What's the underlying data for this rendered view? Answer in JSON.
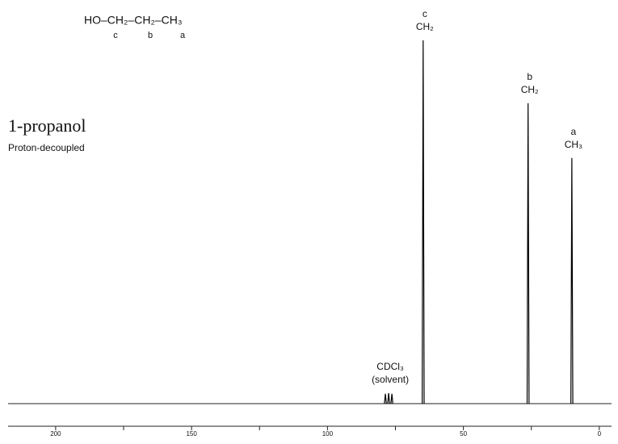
{
  "chart_data": {
    "type": "spectrum",
    "title": "1-propanol",
    "subtitle": "Proton-decoupled",
    "formula": {
      "text": "HO–CH₂–CH₂–CH₃",
      "letters": [
        "c",
        "b",
        "a"
      ]
    },
    "x": [
      78.7,
      77.5,
      76.3,
      64.8,
      26.2,
      10.1
    ],
    "values": [
      2.7,
      2.9,
      2.7,
      100,
      82.7,
      67.6
    ],
    "peak_labels": [
      {
        "lines": [
          "CDCl₃",
          "(solvent)"
        ]
      },
      {
        "lines": [
          "c",
          "CH₂"
        ]
      },
      {
        "lines": [
          "b",
          "CH₂"
        ]
      },
      {
        "lines": [
          "a",
          "CH₃"
        ]
      }
    ],
    "xlim": [
      217.5,
      -4.5
    ],
    "xticks": [
      200,
      150,
      100,
      50,
      0
    ],
    "xminorticks": [
      175,
      125,
      75,
      25
    ],
    "ylim": [
      0,
      100
    ],
    "color": "#000000"
  }
}
